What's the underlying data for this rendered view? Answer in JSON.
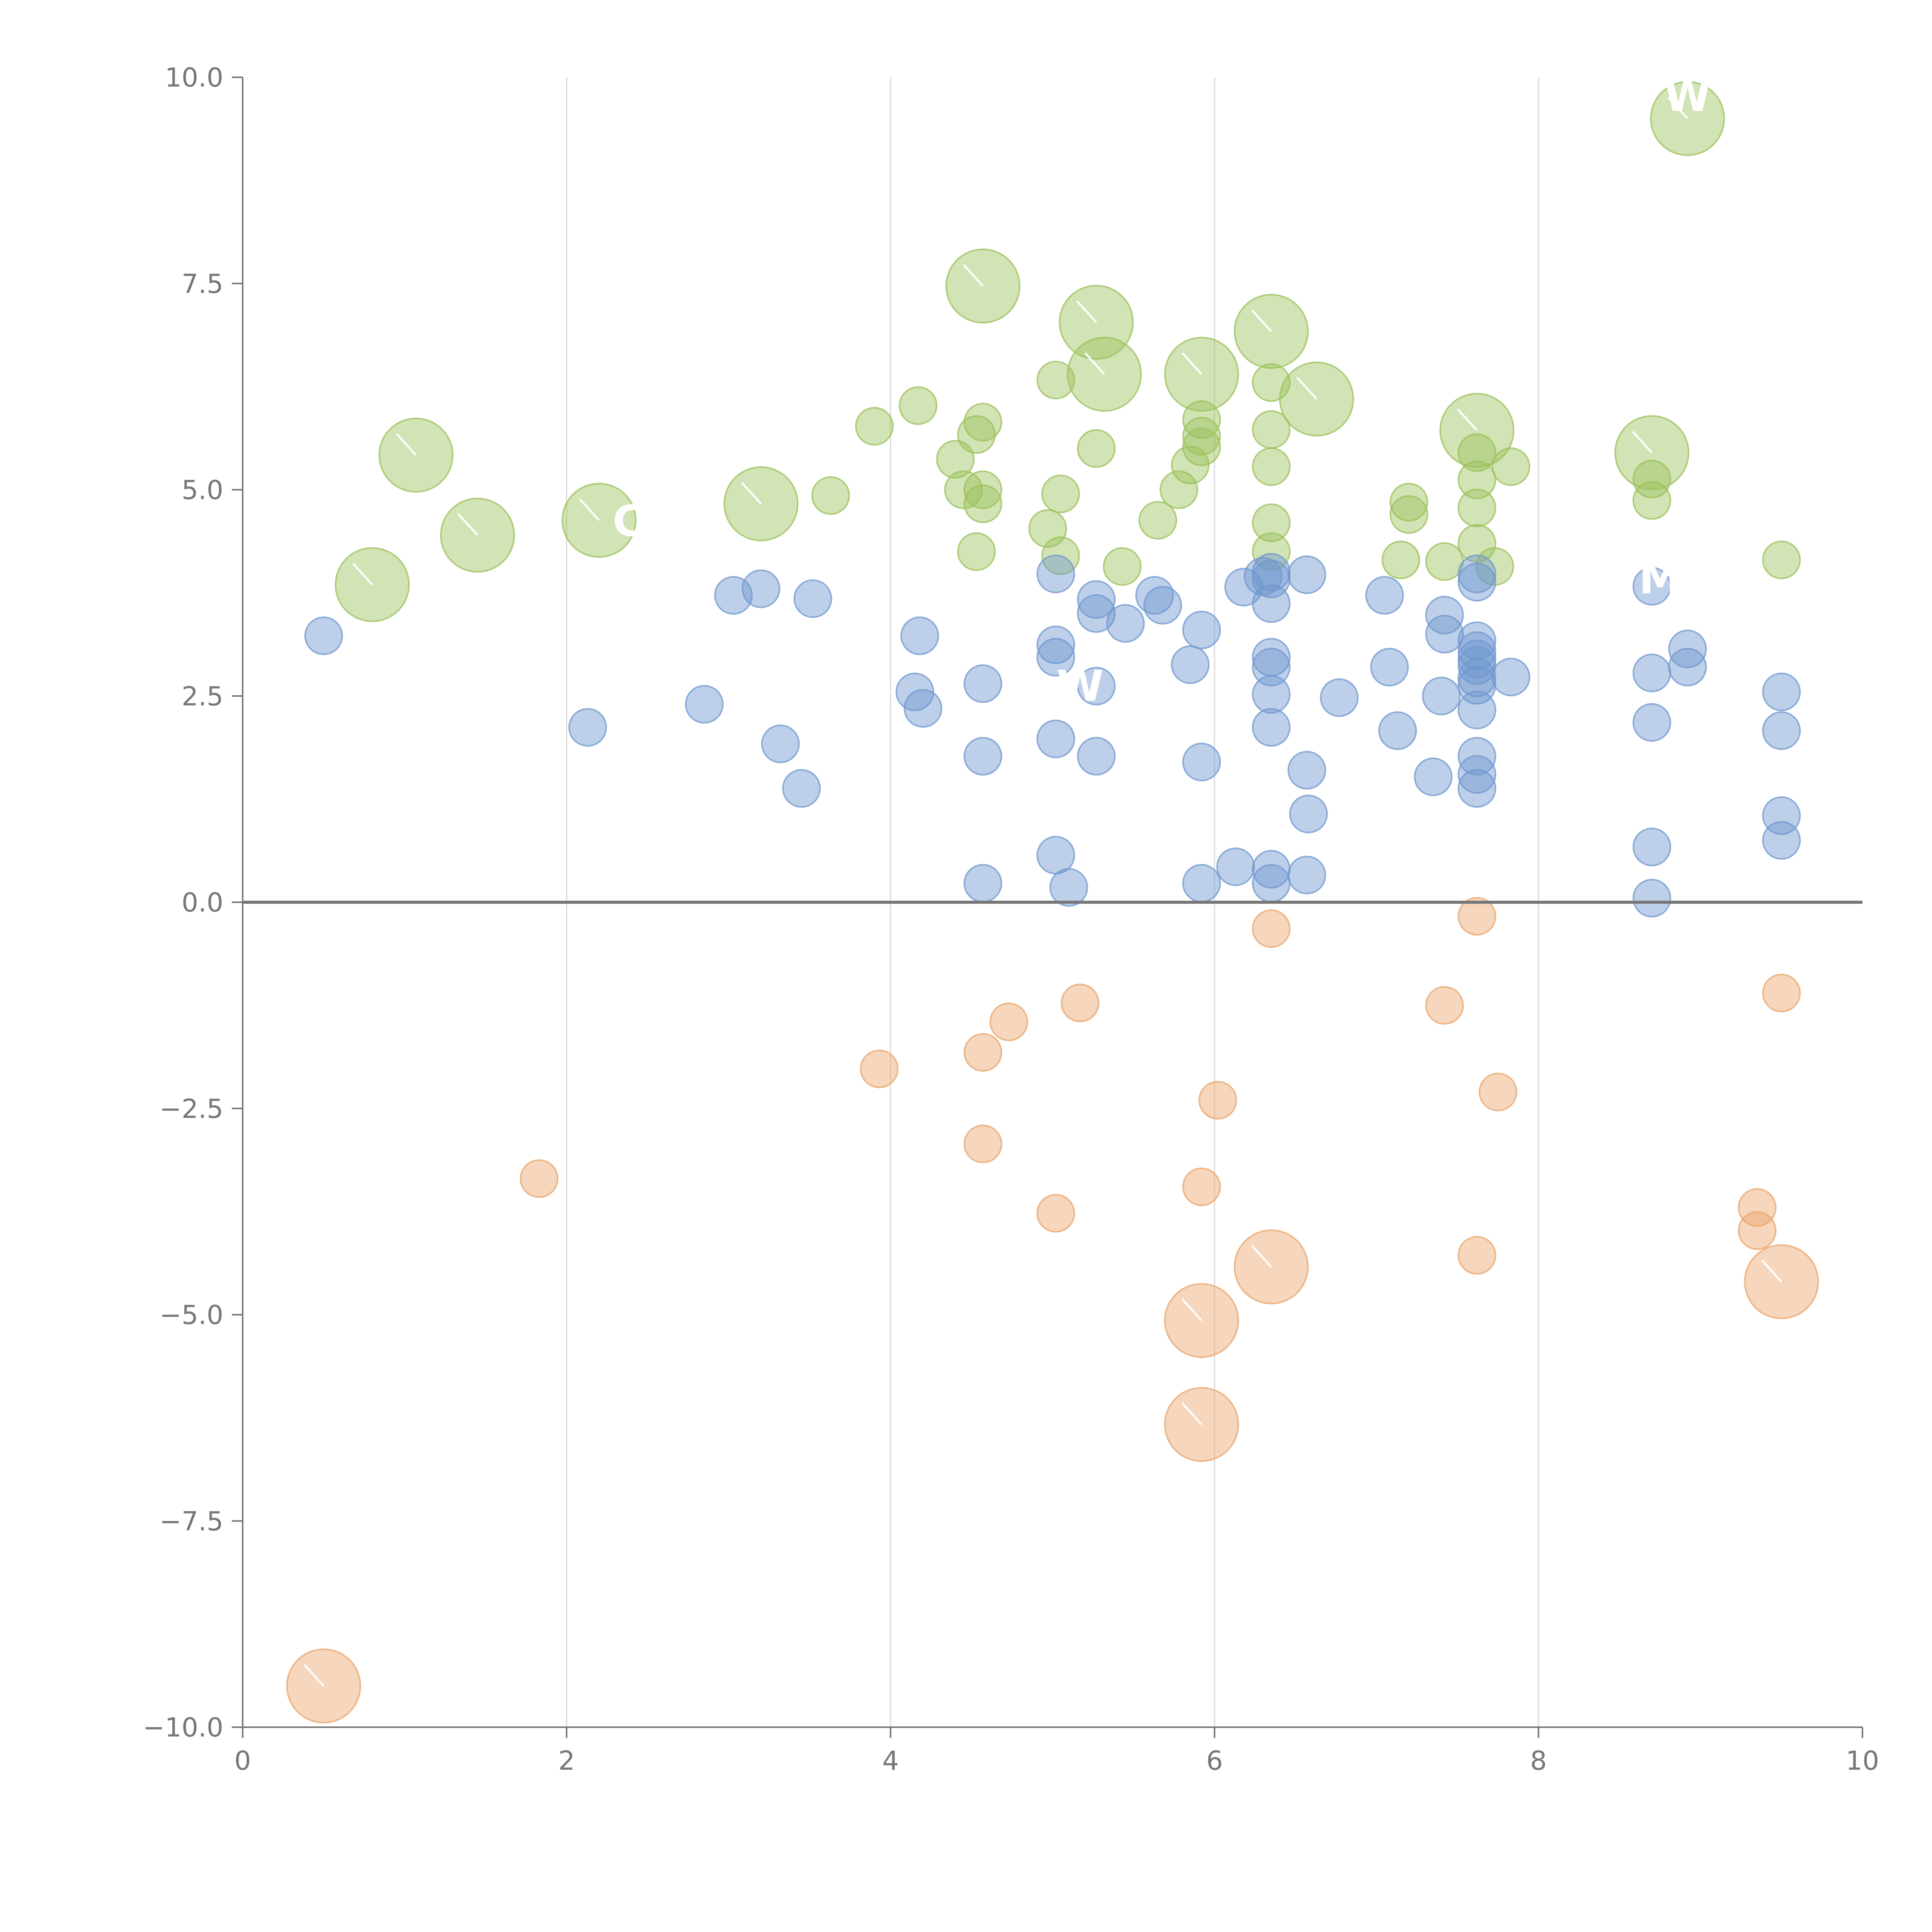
{
  "chart_data": {
    "type": "scatter",
    "title": "",
    "xlabel": "",
    "ylabel": "",
    "xlim": [
      0,
      10
    ],
    "ylim": [
      -10,
      10
    ],
    "x_ticks": [
      0,
      2,
      4,
      6,
      8,
      10
    ],
    "y_ticks": [
      -10,
      -7.5,
      -5,
      -2.5,
      0,
      2.5,
      5,
      7.5,
      10
    ],
    "x_tick_labels": [
      "0",
      "2",
      "4",
      "6",
      "8",
      "10"
    ],
    "y_tick_labels": [
      "−10.0",
      "−7.5",
      "−5.0",
      "−2.5",
      "0.0",
      "2.5",
      "5.0",
      "7.5",
      "10.0"
    ],
    "vertical_grid": true,
    "zero_line": true,
    "legend": "none",
    "series": [
      {
        "name": "green",
        "color": "#9bc05a",
        "points": [
          {
            "x": 0.8,
            "y": 3.85,
            "size": 3
          },
          {
            "x": 1.07,
            "y": 5.42,
            "size": 3
          },
          {
            "x": 1.45,
            "y": 4.45,
            "size": 3
          },
          {
            "x": 2.2,
            "y": 4.63,
            "size": 3
          },
          {
            "x": 3.2,
            "y": 4.83,
            "size": 3
          },
          {
            "x": 4.57,
            "y": 7.47,
            "size": 3
          },
          {
            "x": 5.27,
            "y": 7.03,
            "size": 3
          },
          {
            "x": 5.32,
            "y": 6.4,
            "size": 3
          },
          {
            "x": 5.92,
            "y": 6.4,
            "size": 3
          },
          {
            "x": 6.35,
            "y": 6.92,
            "size": 3
          },
          {
            "x": 6.63,
            "y": 6.1,
            "size": 3
          },
          {
            "x": 7.62,
            "y": 5.72,
            "size": 3
          },
          {
            "x": 8.7,
            "y": 5.45,
            "size": 3
          },
          {
            "x": 8.92,
            "y": 9.5,
            "size": 3
          },
          {
            "x": 3.63,
            "y": 4.93,
            "size": 1
          },
          {
            "x": 3.9,
            "y": 5.77,
            "size": 1
          },
          {
            "x": 4.17,
            "y": 6.02,
            "size": 1
          },
          {
            "x": 4.4,
            "y": 5.37,
            "size": 1
          },
          {
            "x": 4.45,
            "y": 5.0,
            "size": 1
          },
          {
            "x": 4.53,
            "y": 5.67,
            "size": 1
          },
          {
            "x": 4.57,
            "y": 5.82,
            "size": 1
          },
          {
            "x": 4.57,
            "y": 5.0,
            "size": 1
          },
          {
            "x": 4.57,
            "y": 4.83,
            "size": 1
          },
          {
            "x": 4.53,
            "y": 4.25,
            "size": 1
          },
          {
            "x": 4.97,
            "y": 4.53,
            "size": 1
          },
          {
            "x": 5.02,
            "y": 6.33,
            "size": 1
          },
          {
            "x": 5.05,
            "y": 4.95,
            "size": 1
          },
          {
            "x": 5.05,
            "y": 4.2,
            "size": 1
          },
          {
            "x": 5.27,
            "y": 5.5,
            "size": 1
          },
          {
            "x": 5.43,
            "y": 4.07,
            "size": 1
          },
          {
            "x": 5.65,
            "y": 4.63,
            "size": 1
          },
          {
            "x": 5.78,
            "y": 5.0,
            "size": 1
          },
          {
            "x": 5.85,
            "y": 5.3,
            "size": 1
          },
          {
            "x": 5.92,
            "y": 5.85,
            "size": 1
          },
          {
            "x": 5.92,
            "y": 5.65,
            "size": 1
          },
          {
            "x": 5.92,
            "y": 5.52,
            "size": 1
          },
          {
            "x": 6.35,
            "y": 6.3,
            "size": 1
          },
          {
            "x": 6.35,
            "y": 5.73,
            "size": 1
          },
          {
            "x": 6.35,
            "y": 5.28,
            "size": 1
          },
          {
            "x": 6.35,
            "y": 4.6,
            "size": 1
          },
          {
            "x": 6.35,
            "y": 4.25,
            "size": 1
          },
          {
            "x": 7.2,
            "y": 4.85,
            "size": 1
          },
          {
            "x": 7.2,
            "y": 4.7,
            "size": 1
          },
          {
            "x": 7.15,
            "y": 4.15,
            "size": 1
          },
          {
            "x": 7.42,
            "y": 4.13,
            "size": 1
          },
          {
            "x": 7.62,
            "y": 5.45,
            "size": 1
          },
          {
            "x": 7.62,
            "y": 5.12,
            "size": 1
          },
          {
            "x": 7.62,
            "y": 4.78,
            "size": 1
          },
          {
            "x": 7.62,
            "y": 4.35,
            "size": 1
          },
          {
            "x": 7.73,
            "y": 4.07,
            "size": 1
          },
          {
            "x": 7.83,
            "y": 5.28,
            "size": 1
          },
          {
            "x": 8.7,
            "y": 5.13,
            "size": 1
          },
          {
            "x": 8.7,
            "y": 4.87,
            "size": 1
          },
          {
            "x": 9.5,
            "y": 4.15,
            "size": 1
          }
        ]
      },
      {
        "name": "blue",
        "color": "#6f97cf",
        "points": [
          {
            "x": 0.5,
            "y": 3.23,
            "size": 1
          },
          {
            "x": 2.13,
            "y": 2.12,
            "size": 1
          },
          {
            "x": 2.85,
            "y": 2.4,
            "size": 1
          },
          {
            "x": 3.03,
            "y": 3.72,
            "size": 1
          },
          {
            "x": 3.2,
            "y": 3.8,
            "size": 1
          },
          {
            "x": 3.32,
            "y": 1.92,
            "size": 1
          },
          {
            "x": 3.45,
            "y": 1.38,
            "size": 1
          },
          {
            "x": 3.52,
            "y": 3.68,
            "size": 1
          },
          {
            "x": 4.15,
            "y": 2.55,
            "size": 1
          },
          {
            "x": 4.18,
            "y": 3.23,
            "size": 1
          },
          {
            "x": 4.2,
            "y": 2.35,
            "size": 1
          },
          {
            "x": 4.57,
            "y": 2.65,
            "size": 1
          },
          {
            "x": 4.57,
            "y": 1.77,
            "size": 1
          },
          {
            "x": 4.57,
            "y": 0.23,
            "size": 1
          },
          {
            "x": 5.02,
            "y": 3.98,
            "size": 1
          },
          {
            "x": 5.02,
            "y": 3.12,
            "size": 1
          },
          {
            "x": 5.02,
            "y": 2.97,
            "size": 1
          },
          {
            "x": 5.02,
            "y": 1.98,
            "size": 1
          },
          {
            "x": 5.02,
            "y": 0.57,
            "size": 1
          },
          {
            "x": 5.1,
            "y": 0.18,
            "size": 1
          },
          {
            "x": 5.27,
            "y": 3.67,
            "size": 1
          },
          {
            "x": 5.27,
            "y": 3.5,
            "size": 1
          },
          {
            "x": 5.27,
            "y": 2.62,
            "size": 1
          },
          {
            "x": 5.27,
            "y": 1.77,
            "size": 1
          },
          {
            "x": 5.45,
            "y": 3.38,
            "size": 1
          },
          {
            "x": 5.63,
            "y": 3.72,
            "size": 1
          },
          {
            "x": 5.68,
            "y": 3.6,
            "size": 1
          },
          {
            "x": 5.85,
            "y": 2.88,
            "size": 1
          },
          {
            "x": 5.92,
            "y": 3.3,
            "size": 1
          },
          {
            "x": 5.92,
            "y": 1.7,
            "size": 1
          },
          {
            "x": 5.92,
            "y": 0.23,
            "size": 1
          },
          {
            "x": 6.13,
            "y": 0.43,
            "size": 1
          },
          {
            "x": 6.18,
            "y": 3.82,
            "size": 1
          },
          {
            "x": 6.3,
            "y": 3.95,
            "size": 1
          },
          {
            "x": 6.35,
            "y": 4.0,
            "size": 1
          },
          {
            "x": 6.35,
            "y": 3.92,
            "size": 1
          },
          {
            "x": 6.35,
            "y": 3.62,
            "size": 1
          },
          {
            "x": 6.35,
            "y": 2.97,
            "size": 1
          },
          {
            "x": 6.35,
            "y": 2.85,
            "size": 1
          },
          {
            "x": 6.35,
            "y": 2.52,
            "size": 1
          },
          {
            "x": 6.35,
            "y": 2.12,
            "size": 1
          },
          {
            "x": 6.35,
            "y": 0.4,
            "size": 1
          },
          {
            "x": 6.35,
            "y": 0.23,
            "size": 1
          },
          {
            "x": 6.57,
            "y": 3.97,
            "size": 1
          },
          {
            "x": 6.57,
            "y": 1.6,
            "size": 1
          },
          {
            "x": 6.58,
            "y": 1.07,
            "size": 1
          },
          {
            "x": 6.57,
            "y": 0.33,
            "size": 1
          },
          {
            "x": 6.77,
            "y": 2.48,
            "size": 1
          },
          {
            "x": 7.05,
            "y": 3.72,
            "size": 1
          },
          {
            "x": 7.08,
            "y": 2.85,
            "size": 1
          },
          {
            "x": 7.13,
            "y": 2.08,
            "size": 1
          },
          {
            "x": 7.35,
            "y": 1.52,
            "size": 1
          },
          {
            "x": 7.4,
            "y": 2.5,
            "size": 1
          },
          {
            "x": 7.42,
            "y": 3.48,
            "size": 1
          },
          {
            "x": 7.42,
            "y": 3.25,
            "size": 1
          },
          {
            "x": 7.62,
            "y": 3.98,
            "size": 1
          },
          {
            "x": 7.62,
            "y": 3.88,
            "size": 1
          },
          {
            "x": 7.62,
            "y": 3.17,
            "size": 1
          },
          {
            "x": 7.62,
            "y": 3.05,
            "size": 1
          },
          {
            "x": 7.62,
            "y": 2.95,
            "size": 1
          },
          {
            "x": 7.62,
            "y": 2.87,
            "size": 1
          },
          {
            "x": 7.62,
            "y": 2.72,
            "size": 1
          },
          {
            "x": 7.62,
            "y": 2.63,
            "size": 1
          },
          {
            "x": 7.62,
            "y": 2.33,
            "size": 1
          },
          {
            "x": 7.62,
            "y": 1.77,
            "size": 1
          },
          {
            "x": 7.62,
            "y": 1.55,
            "size": 1
          },
          {
            "x": 7.62,
            "y": 1.38,
            "size": 1
          },
          {
            "x": 7.83,
            "y": 2.73,
            "size": 1
          },
          {
            "x": 8.7,
            "y": 3.83,
            "size": 1
          },
          {
            "x": 8.7,
            "y": 2.78,
            "size": 1
          },
          {
            "x": 8.7,
            "y": 2.18,
            "size": 1
          },
          {
            "x": 8.7,
            "y": 0.67,
            "size": 1
          },
          {
            "x": 8.7,
            "y": 0.05,
            "size": 1
          },
          {
            "x": 8.92,
            "y": 3.07,
            "size": 1
          },
          {
            "x": 8.92,
            "y": 2.85,
            "size": 1
          },
          {
            "x": 9.5,
            "y": 2.55,
            "size": 1
          },
          {
            "x": 9.5,
            "y": 2.08,
            "size": 1
          },
          {
            "x": 9.5,
            "y": 1.05,
            "size": 1
          },
          {
            "x": 9.5,
            "y": 0.75,
            "size": 1
          }
        ]
      },
      {
        "name": "orange",
        "color": "#eaa46a",
        "points": [
          {
            "x": 0.5,
            "y": -9.5,
            "size": 3
          },
          {
            "x": 5.92,
            "y": -5.07,
            "size": 3
          },
          {
            "x": 5.92,
            "y": -6.33,
            "size": 3
          },
          {
            "x": 6.35,
            "y": -4.42,
            "size": 3
          },
          {
            "x": 9.5,
            "y": -4.6,
            "size": 3
          },
          {
            "x": 1.83,
            "y": -3.35,
            "size": 1
          },
          {
            "x": 3.93,
            "y": -2.02,
            "size": 1
          },
          {
            "x": 4.57,
            "y": -1.82,
            "size": 1
          },
          {
            "x": 4.57,
            "y": -2.93,
            "size": 1
          },
          {
            "x": 4.73,
            "y": -1.45,
            "size": 1
          },
          {
            "x": 5.02,
            "y": -3.77,
            "size": 1
          },
          {
            "x": 5.17,
            "y": -1.22,
            "size": 1
          },
          {
            "x": 5.92,
            "y": -3.45,
            "size": 1
          },
          {
            "x": 6.02,
            "y": -2.4,
            "size": 1
          },
          {
            "x": 6.35,
            "y": -0.32,
            "size": 1
          },
          {
            "x": 7.42,
            "y": -1.25,
            "size": 1
          },
          {
            "x": 7.62,
            "y": -0.17,
            "size": 1
          },
          {
            "x": 7.62,
            "y": -4.28,
            "size": 1
          },
          {
            "x": 7.75,
            "y": -2.3,
            "size": 1
          },
          {
            "x": 9.35,
            "y": -3.7,
            "size": 1
          },
          {
            "x": 9.35,
            "y": -3.98,
            "size": 1
          },
          {
            "x": 9.5,
            "y": -1.1,
            "size": 1
          }
        ]
      }
    ],
    "annotations": [
      {
        "text": "W",
        "x": 8.92,
        "y": 9.5,
        "color": "#ffffff"
      },
      {
        "text": "M",
        "x": 8.75,
        "y": 3.65,
        "color": "#ffffff"
      },
      {
        "text": "C",
        "x": 2.38,
        "y": 4.35,
        "color": "#ffffff"
      },
      {
        "text": "W",
        "x": 5.17,
        "y": 2.35,
        "color": "#ffffff"
      }
    ]
  }
}
